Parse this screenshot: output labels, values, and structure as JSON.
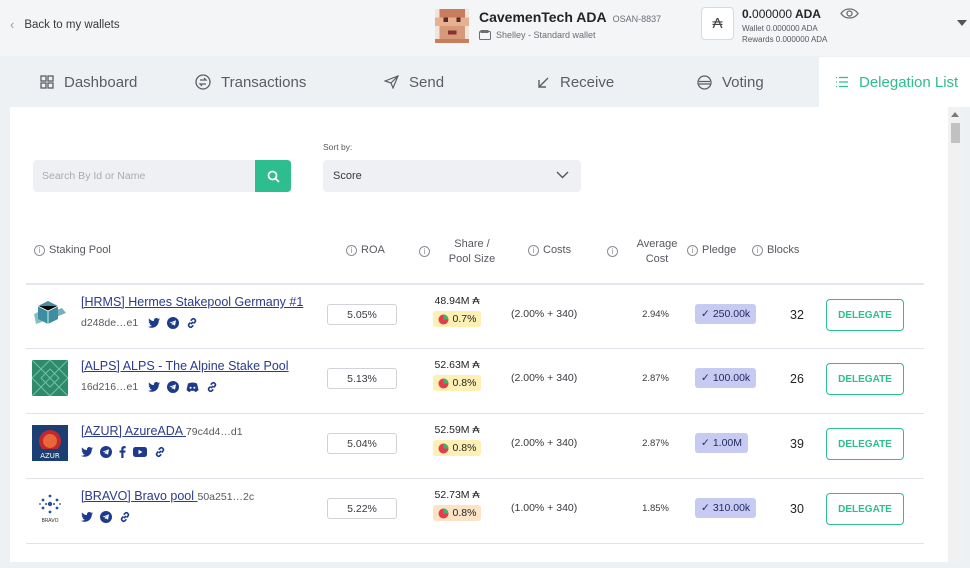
{
  "header": {
    "back_label": "Back to my wallets",
    "wallet_name": "CavemenTech ADA",
    "wallet_plate": "OSAN-8837",
    "wallet_type": "Shelley - Standard wallet",
    "balance_int": "0.",
    "balance_dec": "000000",
    "balance_unit": "ADA",
    "wallet_line": "Wallet 0.000000 ADA",
    "rewards_line": "Rewards 0.000000 ADA"
  },
  "tabs": [
    {
      "label": "Dashboard",
      "icon": "dashboard-icon"
    },
    {
      "label": "Transactions",
      "icon": "transactions-icon"
    },
    {
      "label": "Send",
      "icon": "send-icon"
    },
    {
      "label": "Receive",
      "icon": "receive-icon"
    },
    {
      "label": "Voting",
      "icon": "voting-icon"
    },
    {
      "label": "Delegation List",
      "icon": "list-icon",
      "active": true
    }
  ],
  "search": {
    "placeholder": "Search By Id or Name"
  },
  "sort": {
    "label": "Sort by:",
    "value": "Score"
  },
  "columns": {
    "pool": "Staking Pool",
    "roa": "ROA",
    "share_1": "Share /",
    "share_2": "Pool Size",
    "costs": "Costs",
    "avg_1": "Average",
    "avg_2": "Cost",
    "pledge": "Pledge",
    "blocks": "Blocks"
  },
  "pools": [
    {
      "name": "[HRMS] Hermes Stakepool Germany #1",
      "id": "d248de…e1",
      "roa": "5.05%",
      "size": "48.94M ₳",
      "share": "0.7%",
      "costs": "(2.00% + 340)",
      "avg": "2.94%",
      "pledge": "250.00k",
      "blocks": "32",
      "delegate": "DELEGATE"
    },
    {
      "name": "[ALPS] ALPS - The Alpine Stake Pool",
      "id": "16d216…e1",
      "roa": "5.13%",
      "size": "52.63M ₳",
      "share": "0.8%",
      "costs": "(2.00% + 340)",
      "avg": "2.87%",
      "pledge": "100.00k",
      "blocks": "26",
      "delegate": "DELEGATE"
    },
    {
      "name": "[AZUR] AzureADA",
      "id": "79c4d4…d1",
      "roa": "5.04%",
      "size": "52.59M ₳",
      "share": "0.8%",
      "costs": "(2.00% + 340)",
      "avg": "2.87%",
      "pledge": "1.00M",
      "blocks": "39",
      "delegate": "DELEGATE"
    },
    {
      "name": "[BRAVO] Bravo pool",
      "id": "50a251…2c",
      "roa": "5.22%",
      "size": "52.73M ₳",
      "share": "0.8%",
      "costs": "(1.00% + 340)",
      "avg": "1.85%",
      "pledge": "310.00k",
      "blocks": "30",
      "delegate": "DELEGATE"
    }
  ],
  "colors": {
    "accent": "#2ebd8e",
    "pledge_bg": "#c7cbf2",
    "share_bg": "#fdf0b4",
    "link": "#2a3a8c"
  }
}
